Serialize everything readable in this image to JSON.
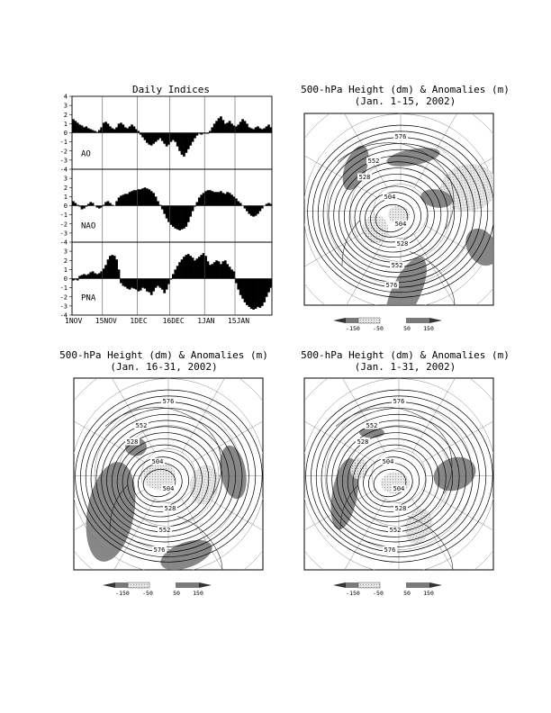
{
  "indices": {
    "title": "Daily Indices",
    "x_ticks": [
      "1NOV",
      "15NOV",
      "1DEC",
      "16DEC",
      "1JAN",
      "15JAN"
    ],
    "y_ticks": [
      "-4",
      "-3",
      "-2",
      "-1",
      "0",
      "1",
      "2",
      "3",
      "4"
    ],
    "ylim": [
      -4,
      4
    ]
  },
  "maps": [
    {
      "title": "500-hPa Height (dm) & Anomalies (m)",
      "subtitle": "(Jan. 1-15, 2002)",
      "contour_labels": [
        "576",
        "552",
        "528",
        "504",
        "504",
        "528",
        "552",
        "576"
      ]
    },
    {
      "title": "500-hPa Height (dm) & Anomalies (m)",
      "subtitle": "(Jan. 16-31, 2002)",
      "contour_labels": [
        "576",
        "552",
        "528",
        "504",
        "504",
        "528",
        "552",
        "576"
      ]
    },
    {
      "title": "500-hPa Height (dm) & Anomalies (m)",
      "subtitle": "(Jan. 1-31, 2002)",
      "contour_labels": [
        "576",
        "552",
        "528",
        "504",
        "504",
        "528",
        "552",
        "576"
      ]
    }
  ],
  "colorbar": {
    "labels": [
      "-150",
      "-50",
      "50",
      "150"
    ]
  },
  "chart_data": [
    {
      "type": "bar",
      "name": "AO",
      "x_start": "1NOV",
      "x_end": "31JAN",
      "ylim": [
        -4,
        4
      ],
      "values": [
        1.5,
        1.3,
        1.1,
        0.9,
        0.8,
        0.6,
        0.7,
        0.5,
        0.4,
        0.3,
        0.2,
        0.1,
        0.3,
        0.6,
        1.1,
        1.2,
        1.0,
        0.7,
        0.5,
        0.4,
        0.6,
        1.0,
        1.1,
        0.9,
        0.6,
        0.5,
        0.7,
        0.9,
        0.7,
        0.4,
        0.2,
        -0.2,
        -0.5,
        -0.8,
        -1.1,
        -1.3,
        -1.4,
        -1.2,
        -1.0,
        -0.8,
        -0.6,
        -0.9,
        -1.2,
        -1.5,
        -1.3,
        -1.0,
        -0.8,
        -1.0,
        -1.5,
        -2.0,
        -2.4,
        -2.6,
        -2.2,
        -1.8,
        -1.4,
        -1.0,
        -0.6,
        -0.3,
        -0.1,
        -0.2,
        -0.1,
        -0.1,
        -0.1,
        0.2,
        0.6,
        1.0,
        1.3,
        1.6,
        1.8,
        1.4,
        1.0,
        1.1,
        1.3,
        1.0,
        0.8,
        0.7,
        0.9,
        1.2,
        1.5,
        1.3,
        1.0,
        0.6,
        0.5,
        0.4,
        0.6,
        0.7,
        0.5,
        0.4,
        0.5,
        0.7,
        0.9,
        0.6
      ]
    },
    {
      "type": "bar",
      "name": "NAO",
      "x_start": "1NOV",
      "x_end": "31JAN",
      "ylim": [
        -4,
        4
      ],
      "values": [
        0.5,
        0.3,
        0.1,
        -0.1,
        -0.4,
        -0.3,
        -0.1,
        0.2,
        0.4,
        0.3,
        0.0,
        -0.2,
        -0.3,
        -0.2,
        0.1,
        0.4,
        0.5,
        0.3,
        0.1,
        0.0,
        0.5,
        0.9,
        1.1,
        1.2,
        1.3,
        1.3,
        1.5,
        1.6,
        1.7,
        1.7,
        1.8,
        1.8,
        1.9,
        2.0,
        1.9,
        1.8,
        1.6,
        1.4,
        1.0,
        0.5,
        0.1,
        -0.4,
        -0.9,
        -1.4,
        -1.8,
        -2.1,
        -2.3,
        -2.5,
        -2.6,
        -2.7,
        -2.6,
        -2.5,
        -2.3,
        -1.8,
        -1.2,
        -0.6,
        -0.1,
        0.4,
        0.9,
        1.2,
        1.4,
        1.6,
        1.7,
        1.7,
        1.6,
        1.5,
        1.5,
        1.5,
        1.6,
        1.4,
        1.3,
        1.5,
        1.4,
        1.2,
        1.0,
        0.8,
        0.5,
        0.3,
        0.0,
        -0.3,
        -0.6,
        -0.9,
        -1.1,
        -1.2,
        -1.1,
        -0.9,
        -0.6,
        -0.3,
        0.0,
        0.2,
        0.3,
        0.2
      ]
    },
    {
      "type": "bar",
      "name": "PNA",
      "x_start": "1NOV",
      "x_end": "31JAN",
      "ylim": [
        -4,
        4
      ],
      "values": [
        -0.2,
        -0.1,
        -0.2,
        0.3,
        0.4,
        0.5,
        0.4,
        0.5,
        0.7,
        0.8,
        0.6,
        0.5,
        0.6,
        0.8,
        1.1,
        1.5,
        2.1,
        2.5,
        2.6,
        2.5,
        2.1,
        1.0,
        -0.5,
        -0.8,
        -0.9,
        -1.1,
        -1.2,
        -1.0,
        -1.1,
        -1.2,
        -1.4,
        -1.3,
        -1.0,
        -1.1,
        -1.4,
        -1.5,
        -1.8,
        -1.4,
        -1.0,
        -0.8,
        -1.0,
        -1.2,
        -1.6,
        -1.2,
        -0.6,
        -0.1,
        0.5,
        1.0,
        1.4,
        1.8,
        2.1,
        2.4,
        2.6,
        2.7,
        2.5,
        2.3,
        2.0,
        2.2,
        2.4,
        2.6,
        2.8,
        2.5,
        1.9,
        1.5,
        1.6,
        1.8,
        2.0,
        1.9,
        1.6,
        1.9,
        2.0,
        1.6,
        1.3,
        1.0,
        0.8,
        -0.5,
        -1.2,
        -1.8,
        -2.2,
        -2.6,
        -2.9,
        -3.1,
        -3.3,
        -3.4,
        -3.3,
        -3.1,
        -3.2,
        -3.0,
        -2.6,
        -2.0,
        -1.5,
        -1.0
      ]
    }
  ]
}
